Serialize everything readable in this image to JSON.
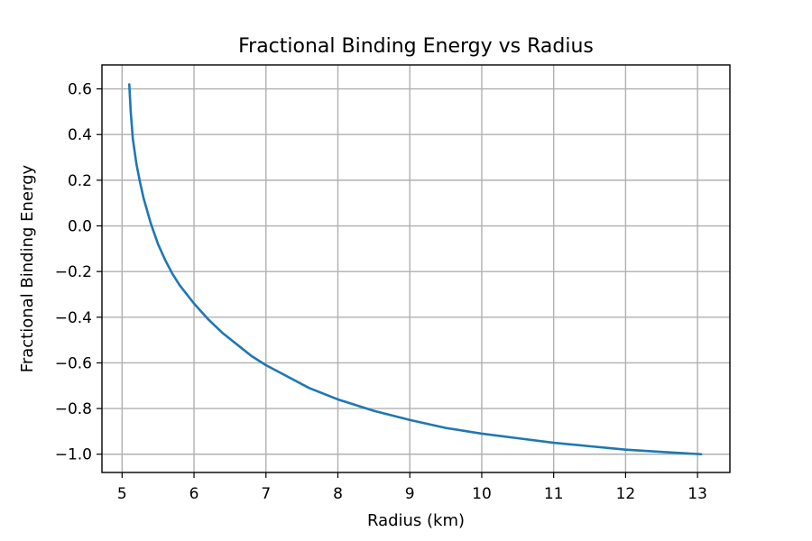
{
  "chart_data": {
    "type": "line",
    "title": "Fractional Binding Energy vs Radius",
    "xlabel": "Radius (km)",
    "ylabel": "Fractional Binding Energy",
    "xlim": [
      4.72,
      13.45
    ],
    "ylim": [
      -1.08,
      0.705
    ],
    "x_ticks": [
      5,
      6,
      7,
      8,
      9,
      10,
      11,
      12,
      13
    ],
    "y_ticks": [
      0.6,
      0.4,
      0.2,
      0.0,
      -0.2,
      -0.4,
      -0.6,
      -0.8,
      -1.0
    ],
    "x_tick_labels": [
      "5",
      "6",
      "7",
      "8",
      "9",
      "10",
      "11",
      "12",
      "13"
    ],
    "y_tick_labels": [
      "0.6",
      "0.4",
      "0.2",
      "0.0",
      "−0.2",
      "−0.4",
      "−0.6",
      "−0.8",
      "−1.0"
    ],
    "grid": true,
    "series": [
      {
        "color": "#1f77b4",
        "x": [
          5.1,
          5.12,
          5.15,
          5.2,
          5.25,
          5.3,
          5.4,
          5.5,
          5.6,
          5.7,
          5.8,
          6.0,
          6.2,
          6.4,
          6.6,
          6.8,
          7.0,
          7.3,
          7.6,
          8.0,
          8.5,
          9.0,
          9.5,
          10.0,
          10.5,
          11.0,
          11.5,
          12.0,
          12.5,
          13.05
        ],
        "y": [
          0.62,
          0.5,
          0.38,
          0.27,
          0.19,
          0.12,
          0.01,
          -0.08,
          -0.15,
          -0.21,
          -0.26,
          -0.34,
          -0.41,
          -0.47,
          -0.52,
          -0.57,
          -0.61,
          -0.66,
          -0.71,
          -0.76,
          -0.81,
          -0.85,
          -0.885,
          -0.91,
          -0.93,
          -0.95,
          -0.965,
          -0.98,
          -0.99,
          -1.0
        ]
      }
    ]
  }
}
